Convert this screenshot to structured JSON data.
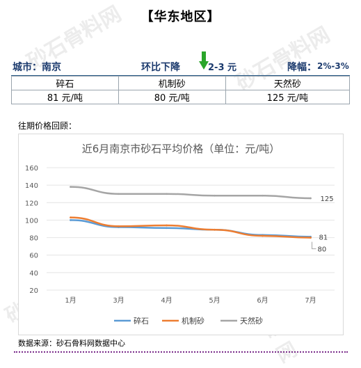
{
  "header": {
    "title": "【华东地区】"
  },
  "summary": {
    "city_label": "城市：南京",
    "trend_label": "环比下降",
    "trend_range": "2-3 元",
    "drop_label": "降幅：",
    "drop_pct": "2%-3%",
    "colors": {
      "text": "#1c3b6e",
      "arrow": "#2aa52a",
      "rule": "#2e5f8a"
    }
  },
  "price_table": {
    "headers": [
      "碎石",
      "机制砂",
      "天然砂"
    ],
    "values": [
      "81 元/吨",
      "80 元/吨",
      "125 元/吨"
    ]
  },
  "history_label": "往期价格回顾：",
  "source_text": "数据来源：砂石骨料网数据中心",
  "watermark_text": "砂石骨料网",
  "watermark_url": "www.cssglw.com",
  "chart_data": {
    "type": "line",
    "title": "近6月南京市砂石平均价格（单位：元/吨）",
    "categories": [
      "1月",
      "3月",
      "4月",
      "5月",
      "6月",
      "7月"
    ],
    "ylim": [
      20,
      160
    ],
    "yticks": [
      20,
      40,
      60,
      80,
      100,
      120,
      140,
      160
    ],
    "grid": true,
    "legend_position": "bottom",
    "series": [
      {
        "name": "碎石",
        "color": "#5b9bd5",
        "values": [
          100,
          92,
          91,
          89,
          83,
          81
        ]
      },
      {
        "name": "机制砂",
        "color": "#ed7d31",
        "values": [
          103,
          93,
          94,
          89,
          82,
          80
        ]
      },
      {
        "name": "天然砂",
        "color": "#a5a5a5",
        "values": [
          138,
          130,
          130,
          128,
          128,
          125
        ]
      }
    ],
    "end_labels": [
      "81",
      "80",
      "125"
    ]
  }
}
